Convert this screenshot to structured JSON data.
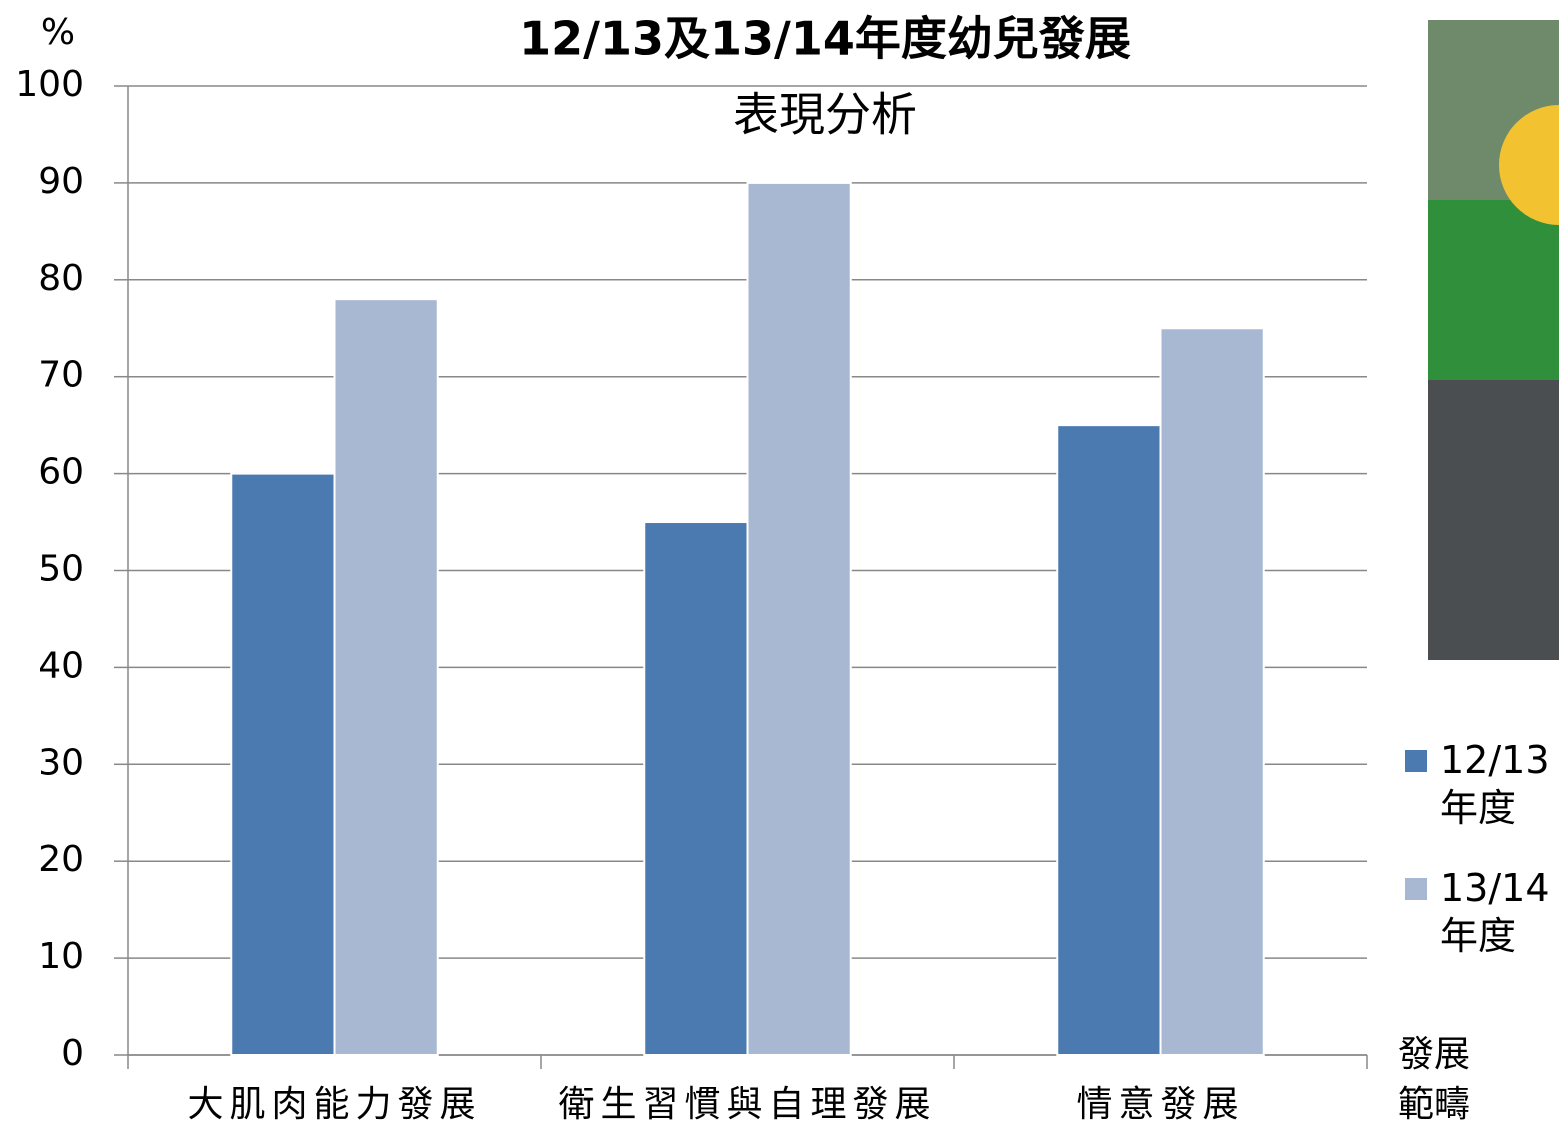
{
  "chart_data": {
    "type": "bar",
    "title": [
      "12/13及13/14年度幼兒發展",
      "表現分析"
    ],
    "y_label": "%",
    "x_label": "發展範疇",
    "categories": [
      "大肌肉能力發展",
      "衛生習慣與自理發展",
      "情意發展"
    ],
    "series": [
      {
        "name": "12/13年度",
        "color": "#4a7ab0",
        "values": [
          60,
          55,
          65
        ]
      },
      {
        "name": "13/14年度",
        "color": "#a8b8d2",
        "values": [
          78,
          90,
          75
        ]
      }
    ],
    "ylim": [
      0,
      100
    ],
    "yticks": [
      0,
      10,
      20,
      30,
      40,
      50,
      60,
      70,
      80,
      90,
      100
    ],
    "grid": true
  }
}
